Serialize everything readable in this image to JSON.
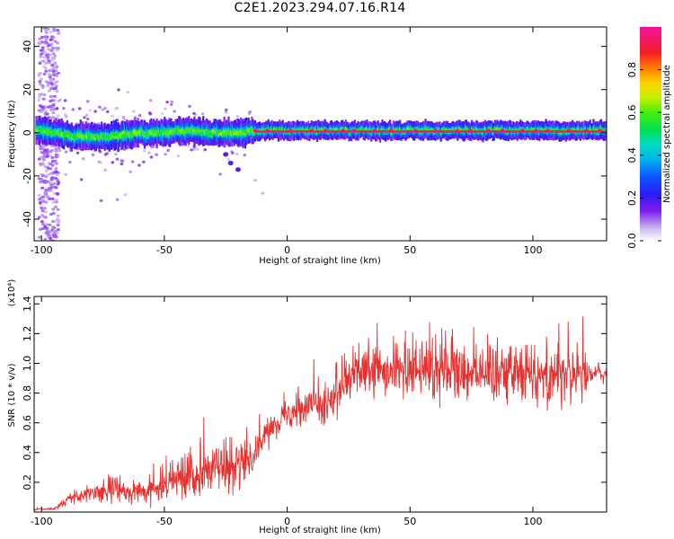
{
  "title": "C2E1.2023.294.07.16.R14",
  "chart_data": [
    {
      "type": "heatmap",
      "xlabel": "Height of straight line (km)",
      "ylabel": "Frequency (Hz)",
      "xlim": [
        -103,
        130
      ],
      "ylim": [
        -50,
        49
      ],
      "xticks": [
        -100,
        -50,
        0,
        50,
        100
      ],
      "yticks": [
        -40,
        -20,
        0,
        20,
        40
      ],
      "colorbar": {
        "label": "Normalized spectral amplitude",
        "range": [
          0.0,
          1.0
        ],
        "ticks": [
          "0.0",
          "0.2",
          "0.4",
          "0.6",
          "0.8"
        ]
      },
      "features": {
        "noisy_column_x": [
          -101,
          -93
        ],
        "band_center_hz": [
          [
            -100,
            1
          ],
          [
            -90,
            -1
          ],
          [
            -80,
            -2
          ],
          [
            -75,
            -2
          ],
          [
            -60,
            0
          ],
          [
            -50,
            0
          ],
          [
            -40,
            1
          ],
          [
            -30,
            0
          ],
          [
            -20,
            0
          ],
          [
            -15,
            1
          ],
          [
            0,
            1
          ],
          [
            50,
            1
          ],
          [
            100,
            1
          ],
          [
            130,
            1
          ]
        ],
        "band_halfwidth_hz": 4,
        "tail_points": [
          [
            -30,
            -5
          ],
          [
            -25,
            -10
          ],
          [
            -23,
            -14
          ],
          [
            -20,
            -17
          ],
          [
            -13,
            -22
          ],
          [
            -10,
            -28
          ]
        ]
      }
    },
    {
      "type": "line",
      "xlabel": "Height of straight line (km)",
      "ylabel": "SNR (10 * v/v)",
      "y_multiplier": "(x10⁴)",
      "xlim": [
        -103,
        130
      ],
      "ylim": [
        0.0,
        1.45
      ],
      "xticks": [
        -100,
        -50,
        0,
        50,
        100
      ],
      "yticks": [
        "0.2",
        "0.4",
        "0.6",
        "0.8",
        "1.0",
        "1.2",
        "1.4"
      ],
      "color": "#e8312f",
      "series": [
        {
          "trend_x": [
            -103,
            -95,
            -90,
            -80,
            -70,
            -60,
            -50,
            -40,
            -30,
            -20,
            -15,
            -10,
            -5,
            0,
            10,
            20,
            25,
            30,
            40,
            50,
            60,
            70,
            80,
            90,
            100,
            110,
            120,
            125,
            130
          ],
          "trend_y": [
            0.02,
            0.02,
            0.07,
            0.13,
            0.16,
            0.12,
            0.18,
            0.26,
            0.31,
            0.3,
            0.37,
            0.5,
            0.6,
            0.66,
            0.72,
            0.76,
            0.88,
            0.94,
            0.94,
            0.95,
            0.96,
            0.95,
            0.95,
            0.95,
            0.94,
            0.93,
            0.92,
            0.93,
            0.93
          ],
          "spread_y": [
            0.005,
            0.005,
            0.03,
            0.07,
            0.08,
            0.06,
            0.09,
            0.14,
            0.15,
            0.16,
            0.12,
            0.08,
            0.08,
            0.08,
            0.12,
            0.13,
            0.12,
            0.14,
            0.17,
            0.18,
            0.18,
            0.18,
            0.18,
            0.18,
            0.18,
            0.18,
            0.16,
            0.06,
            0.05
          ]
        }
      ]
    }
  ]
}
